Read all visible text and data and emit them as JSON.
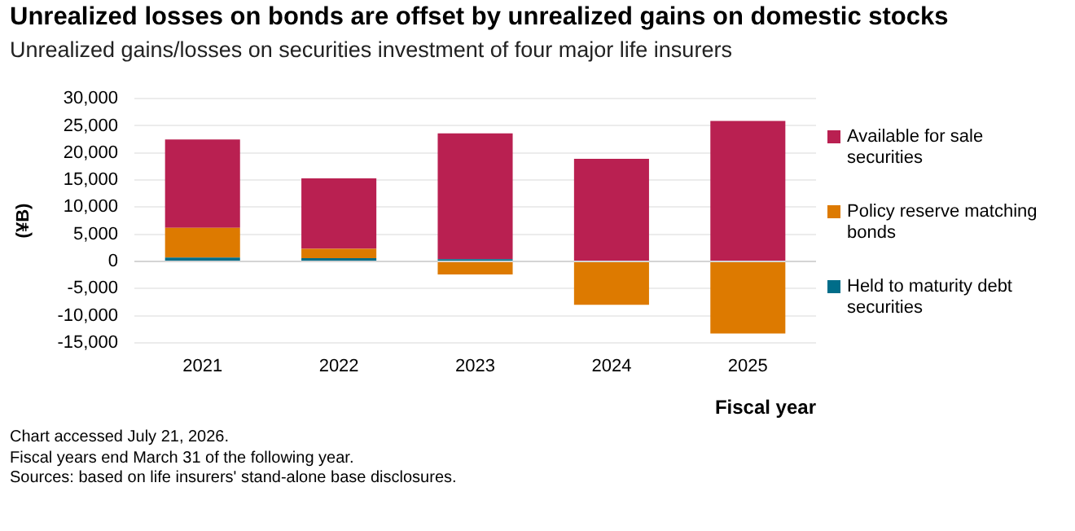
{
  "chart_data": {
    "type": "bar",
    "title": "Unrealized losses on bonds are offset by unrealized gains on domestic stocks",
    "subtitle": "Unrealized gains/losses on securities investment of four major life insurers",
    "xlabel": "Fiscal year",
    "ylabel": "(¥B)",
    "categories": [
      "2021",
      "2022",
      "2023",
      "2024",
      "2025"
    ],
    "series": [
      {
        "name": "Held to maturity debt securities",
        "color": "#006d89",
        "values": [
          700,
          600,
          400,
          0,
          0
        ]
      },
      {
        "name": "Policy reserve matching bonds",
        "color": "#dd7a00",
        "values": [
          5500,
          1700,
          -2400,
          -8000,
          -13300
        ]
      },
      {
        "name": "Available for sale securities",
        "color": "#b92051",
        "values": [
          16300,
          13000,
          23200,
          18900,
          25900
        ]
      }
    ],
    "stacked": true,
    "ylim": [
      -15000,
      30000
    ],
    "yticks": [
      {
        "value": -15000,
        "label": "-15,000"
      },
      {
        "value": -10000,
        "label": "-10,000"
      },
      {
        "value": -5000,
        "label": "-5,000"
      },
      0,
      {
        "value": 5000,
        "label": "5,000"
      },
      {
        "value": 10000,
        "label": "10,000"
      },
      {
        "value": 15000,
        "label": "15,000"
      },
      {
        "value": 20000,
        "label": "20,000"
      },
      {
        "value": 25000,
        "label": "25,000"
      },
      {
        "value": 30000,
        "label": "30,000"
      }
    ],
    "grid": "y",
    "legend": "right",
    "annotations": [
      "Chart accessed July 21, 2026.",
      "Fiscal years end March 31 of the following year.",
      "Sources: based on life insurers' stand-alone base disclosures."
    ]
  }
}
